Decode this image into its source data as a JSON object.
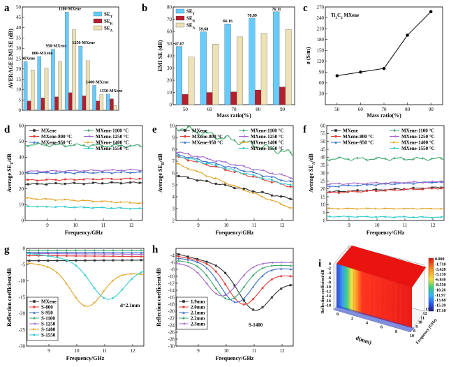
{
  "chart_data": [
    {
      "panel": "a",
      "type": "bar",
      "categories": [
        "MXene",
        "800-MXene",
        "950-MXene",
        "1100-MXene",
        "1250-MXene",
        "1400-MXene",
        "1550-MXene"
      ],
      "category_labels": [
        "MXene",
        "800-MXene",
        "950-MXene",
        "1100-MXene",
        "1250-MXene",
        "1400-MXene",
        "1550-MXene"
      ],
      "series": [
        {
          "name": "SE",
          "sub": "T",
          "color": "#66ccff",
          "values": [
            23.5,
            26,
            29.5,
            47.5,
            31,
            12,
            7.8
          ]
        },
        {
          "name": "SE",
          "sub": "R",
          "color": "#b41e2d",
          "values": [
            4.5,
            6,
            6.5,
            8.5,
            7,
            4.5,
            5.5
          ]
        },
        {
          "name": "SE",
          "sub": "A",
          "color": "#ede2b6",
          "values": [
            19.5,
            20.5,
            23.5,
            39,
            24,
            7.5,
            2.3
          ]
        }
      ],
      "ylabel": "AVERAGE EMI SE (dB)",
      "ylim": [
        0,
        50
      ],
      "yticks": [
        0,
        5,
        10,
        15,
        20,
        25,
        30,
        35,
        40,
        45,
        50
      ]
    },
    {
      "panel": "b",
      "type": "bar",
      "categories": [
        50,
        60,
        70,
        80,
        90
      ],
      "series": [
        {
          "name": "SE",
          "sub": "T",
          "color": "#66ccff",
          "values": [
            47.67,
            59.68,
            66.16,
            70.89,
            76.11
          ]
        },
        {
          "name": "SE",
          "sub": "R",
          "color": "#b41e2d",
          "values": [
            8.5,
            10,
            10.5,
            12,
            14.5
          ]
        },
        {
          "name": "SE",
          "sub": "A",
          "color": "#ede2b6",
          "values": [
            39,
            49.5,
            55.5,
            58.5,
            61.5
          ]
        }
      ],
      "value_labels": [
        "47.67",
        "59.68",
        "66.16",
        "70.89",
        "76.11"
      ],
      "xlabel": "Mass ratio(%)",
      "ylabel": "EMI SE (dB)",
      "ylim": [
        0,
        80
      ],
      "yticks": [
        0,
        10,
        20,
        30,
        40,
        50,
        60,
        70,
        80
      ]
    },
    {
      "panel": "c",
      "type": "line",
      "x": [
        50,
        60,
        70,
        80,
        90
      ],
      "y": [
        80,
        90,
        100,
        192,
        257
      ],
      "annotation": "Ti3C2 MXene",
      "xlabel": "Mass ratio(%)",
      "ylabel": "σ (S/m)",
      "ylim": [
        0,
        270
      ],
      "yticks": [
        30,
        60,
        90,
        120,
        150,
        180,
        210,
        240,
        270
      ]
    },
    {
      "panel": "d",
      "type": "line",
      "xlabel": "Frequency/GHz",
      "ylabel": "Average SE_T/dB",
      "xlim": [
        8.2,
        12.4
      ],
      "ylim": [
        0,
        60
      ],
      "xticks": [
        9,
        10,
        11,
        12
      ],
      "yticks": [
        0,
        10,
        20,
        30,
        40,
        50,
        60
      ],
      "series": [
        {
          "name": "MXene",
          "color": "#333333",
          "marker": "square",
          "y0": 23,
          "y1": 24,
          "w": 0.3
        },
        {
          "name": "MXene-800 °C",
          "color": "#e0403a",
          "marker": "circle",
          "y0": 25.5,
          "y1": 26.5,
          "w": 0.3
        },
        {
          "name": "MXene-950 °C",
          "color": "#3a6fc8",
          "marker": "triangle",
          "y0": 30,
          "y1": 30.5,
          "w": 0.3
        },
        {
          "name": "MXene-1100 °C",
          "color": "#3fa86b",
          "marker": "diamond",
          "y0": 48,
          "y1": 47,
          "w": 0.7
        },
        {
          "name": "MXene-1250 °C",
          "color": "#a066c8",
          "marker": "triangle-left",
          "y0": 31,
          "y1": 32,
          "w": 0.3
        },
        {
          "name": "MXene-1400 °C",
          "color": "#e0a020",
          "marker": "triangle-right",
          "y0": 14,
          "y1": 11,
          "w": 0.3
        },
        {
          "name": "MXene-1550 °C",
          "color": "#33cccc",
          "marker": "hexagon",
          "y0": 9,
          "y1": 7.5,
          "w": 0.2
        }
      ]
    },
    {
      "panel": "e",
      "type": "line",
      "xlabel": "Frequency/GHz",
      "ylabel": "Average SE_R/dB",
      "xlim": [
        8.2,
        12.4
      ],
      "ylim": [
        2,
        10
      ],
      "xticks": [
        9,
        10,
        11,
        12
      ],
      "yticks": [
        2,
        3,
        4,
        5,
        6,
        7,
        8,
        9,
        10
      ],
      "series": [
        {
          "name": "MXene",
          "color": "#333333",
          "marker": "square",
          "y0": 5.8,
          "y1": 3.8,
          "w": 0.05
        },
        {
          "name": "MXene-800 °C",
          "color": "#e0403a",
          "marker": "circle",
          "y0": 7.4,
          "y1": 4.8,
          "w": 0.06
        },
        {
          "name": "MXene-950 °C",
          "color": "#3a6fc8",
          "marker": "triangle",
          "y0": 7.6,
          "y1": 5.2,
          "w": 0.06
        },
        {
          "name": "MXene-1100 °C",
          "color": "#3fa86b",
          "marker": "diamond",
          "y0": 9.9,
          "y1": 7.6,
          "w": 0.2
        },
        {
          "name": "MXene-1250 °C",
          "color": "#a066c8",
          "marker": "triangle-left",
          "y0": 7.8,
          "y1": 5.6,
          "w": 0.06
        },
        {
          "name": "MXene-1400 °C",
          "color": "#e0a020",
          "marker": "triangle-right",
          "y0": 6.8,
          "y1": 3.0,
          "w": 0.05
        },
        {
          "name": "MXene-1550 °C",
          "color": "#33cccc",
          "marker": "hexagon",
          "y0": 7.5,
          "y1": 4.9,
          "w": 0.05
        }
      ]
    },
    {
      "panel": "f",
      "type": "line",
      "xlabel": "Frequency/GHz",
      "ylabel": "Average SE_A/dB",
      "xlim": [
        8.2,
        12.4
      ],
      "ylim": [
        0,
        60
      ],
      "xticks": [
        9,
        10,
        11,
        12
      ],
      "yticks": [
        0,
        5,
        10,
        15,
        20,
        25,
        30,
        35,
        40,
        45,
        50,
        55,
        60
      ],
      "series": [
        {
          "name": "MXene",
          "color": "#333333",
          "marker": "square",
          "y0": 18,
          "y1": 21,
          "w": 0.3
        },
        {
          "name": "MXene-800 °C",
          "color": "#e0403a",
          "marker": "circle",
          "y0": 17.5,
          "y1": 20.5,
          "w": 0.3
        },
        {
          "name": "MXene-950 °C",
          "color": "#3a6fc8",
          "marker": "triangle",
          "y0": 21.5,
          "y1": 24.5,
          "w": 0.3
        },
        {
          "name": "MXene-1100 °C",
          "color": "#3fa86b",
          "marker": "diamond",
          "y0": 39,
          "y1": 39,
          "w": 0.7
        },
        {
          "name": "MXene-1250 °C",
          "color": "#a066c8",
          "marker": "triangle-left",
          "y0": 23,
          "y1": 24.5,
          "w": 0.3
        },
        {
          "name": "MXene-1400 °C",
          "color": "#e0a020",
          "marker": "triangle-right",
          "y0": 7.5,
          "y1": 7.5,
          "w": 0.2
        },
        {
          "name": "MXene-1550 °C",
          "color": "#33cccc",
          "marker": "hexagon",
          "y0": 2.5,
          "y1": 2,
          "w": 0.2
        }
      ]
    },
    {
      "panel": "g",
      "type": "line",
      "xlabel": "Frequency/GHz",
      "ylabel": "Reflection coefficient/dB",
      "xlim": [
        8.2,
        12.4
      ],
      "ylim": [
        -30,
        0
      ],
      "xticks": [
        9,
        10,
        11,
        12
      ],
      "yticks": [
        0,
        -5,
        -10,
        -15,
        -20,
        -25,
        -30
      ],
      "annotation": "d=2.1mm",
      "series": [
        {
          "name": "MXene",
          "color": "#333333",
          "marker": "square",
          "y0": -3.8,
          "y1": -3.6,
          "dip": 0,
          "fc": 10,
          "bw": 1
        },
        {
          "name": "S-800",
          "color": "#e0403a",
          "marker": "circle",
          "y0": -2.2,
          "y1": -2.5,
          "dip": 0,
          "fc": 10,
          "bw": 1
        },
        {
          "name": "S-950",
          "color": "#3a6fc8",
          "marker": "triangle",
          "y0": -1.2,
          "y1": -1.3,
          "dip": 0,
          "fc": 10,
          "bw": 1
        },
        {
          "name": "S-1100",
          "color": "#3fa86b",
          "marker": "diamond",
          "y0": -0.6,
          "y1": -0.6,
          "dip": 0,
          "fc": 10,
          "bw": 1
        },
        {
          "name": "S-1250",
          "color": "#a066c8",
          "marker": "triangle-left",
          "y0": -1.6,
          "y1": -1.8,
          "dip": 0,
          "fc": 10,
          "bw": 1
        },
        {
          "name": "S-1400",
          "color": "#e0a020",
          "marker": "triangle-right",
          "y0": -4.5,
          "y1": -8,
          "dip": 11.5,
          "fc": 10.35,
          "bw": 0.8
        },
        {
          "name": "S-1550",
          "color": "#33cccc",
          "marker": "hexagon",
          "y0": -1.5,
          "y1": -6,
          "dip": 11,
          "fc": 11.1,
          "bw": 0.85
        }
      ]
    },
    {
      "panel": "h",
      "type": "line",
      "xlabel": "Frequency/GHz",
      "ylabel": "Reflection coefficient/dB",
      "xlim": [
        8.2,
        12.4
      ],
      "ylim": [
        -30,
        -2
      ],
      "xticks": [
        9,
        10,
        11,
        12
      ],
      "yticks": [
        -4,
        -6,
        -8,
        -10,
        -12,
        -14,
        -16,
        -18,
        -20,
        -22,
        -24,
        -26,
        -28,
        -30
      ],
      "annotation": "S-1400",
      "series": [
        {
          "name": "1.9mm",
          "color": "#333333",
          "marker": "square",
          "y0": -3.5,
          "y1": -12,
          "dip": 10.5,
          "fc": 11.0,
          "bw": 0.8
        },
        {
          "name": "2.0mm",
          "color": "#e0403a",
          "marker": "circle",
          "y0": -4.2,
          "y1": -10,
          "dip": 10.5,
          "fc": 10.6,
          "bw": 0.8
        },
        {
          "name": "2.1mm",
          "color": "#3a6fc8",
          "marker": "triangle",
          "y0": -4.8,
          "y1": -8,
          "dip": 11,
          "fc": 10.35,
          "bw": 0.8
        },
        {
          "name": "2.2mm",
          "color": "#3fa86b",
          "marker": "diamond",
          "y0": -5.5,
          "y1": -7,
          "dip": 10.5,
          "fc": 10.1,
          "bw": 0.8
        },
        {
          "name": "2.3mm",
          "color": "#a066c8",
          "marker": "triangle-left",
          "y0": -6.2,
          "y1": -6,
          "dip": 9.5,
          "fc": 9.85,
          "bw": 0.8
        }
      ]
    },
    {
      "panel": "i",
      "type": "surface",
      "xlabel": "d(mm)",
      "ylabel": "Frequency (GHz)",
      "zlabel": "Reflection coefficient/dB",
      "colorbar_ticks": [
        "0.000",
        "-1.710",
        "-3.420",
        "-5.130",
        "-6.840",
        "-8.550",
        "-10.26",
        "-11.97",
        "-13.68",
        "-15.39",
        "-17.10"
      ],
      "x_ticks": [
        0,
        2,
        4,
        6,
        8,
        10
      ],
      "y_ticks": [
        8,
        9,
        10,
        11,
        12,
        13
      ],
      "z_ticks": [
        0,
        -2,
        -4,
        -6,
        -8,
        -10,
        -12,
        -14,
        -16,
        -18
      ]
    }
  ]
}
